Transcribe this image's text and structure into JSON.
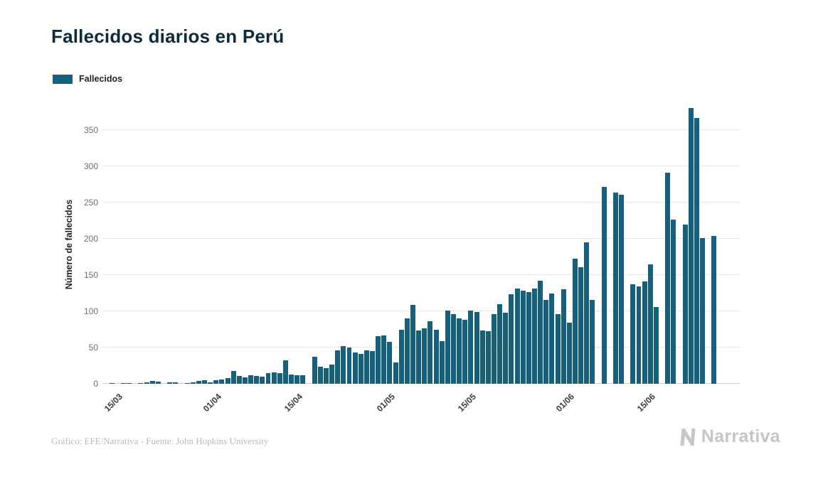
{
  "page": {
    "title": "Fallecidos diarios en Perú",
    "footer_credit": "Gráfico: EFE/Narrativa - Fuente: John Hopkins University",
    "brand": "Narrativa"
  },
  "chart_data": {
    "type": "bar",
    "title": "Fallecidos diarios en Perú",
    "legend": "Fallecidos",
    "xlabel": "",
    "ylabel": "Número de fallecidos",
    "ylim": [
      0,
      380
    ],
    "yticks": [
      0,
      50,
      100,
      150,
      200,
      250,
      300,
      350
    ],
    "grid": true,
    "legend_position": "top-left",
    "bar_color": "#15607d",
    "background_color": "#ffffff",
    "categories": [
      "13/03",
      "14/03",
      "15/03",
      "16/03",
      "17/03",
      "18/03",
      "19/03",
      "20/03",
      "21/03",
      "22/03",
      "23/03",
      "24/03",
      "25/03",
      "26/03",
      "27/03",
      "28/03",
      "29/03",
      "30/03",
      "31/03",
      "01/04",
      "02/04",
      "03/04",
      "04/04",
      "05/04",
      "06/04",
      "07/04",
      "08/04",
      "09/04",
      "10/04",
      "11/04",
      "12/04",
      "13/04",
      "14/04",
      "15/04",
      "16/04",
      "17/04",
      "18/04",
      "19/04",
      "20/04",
      "21/04",
      "22/04",
      "23/04",
      "24/04",
      "25/04",
      "26/04",
      "27/04",
      "28/04",
      "29/04",
      "30/04",
      "01/05",
      "02/05",
      "03/05",
      "04/05",
      "05/05",
      "06/05",
      "07/05",
      "08/05",
      "09/05",
      "10/05",
      "11/05",
      "12/05",
      "13/05",
      "14/05",
      "15/05",
      "16/05",
      "17/05",
      "18/05",
      "19/05",
      "20/05",
      "21/05",
      "22/05",
      "23/05",
      "24/05",
      "25/05",
      "26/05",
      "27/05",
      "28/05",
      "29/05",
      "30/05",
      "31/05",
      "01/06",
      "02/06",
      "03/06",
      "04/06",
      "05/06",
      "06/06",
      "07/06",
      "08/06",
      "09/06",
      "10/06",
      "11/06",
      "12/06",
      "13/06",
      "14/06",
      "15/06",
      "16/06",
      "17/06",
      "18/06",
      "19/06",
      "20/06",
      "21/06",
      "22/06",
      "23/06",
      "24/06",
      "25/06",
      "26/06",
      "27/06",
      "28/06",
      "29/06",
      "30/06"
    ],
    "values": [
      0,
      1,
      0,
      1,
      1,
      0,
      1,
      2,
      4,
      3,
      0,
      2,
      2,
      0,
      1,
      2,
      4,
      5,
      2,
      5,
      6,
      8,
      18,
      11,
      9,
      12,
      11,
      10,
      15,
      16,
      15,
      32,
      13,
      12,
      12,
      0,
      37,
      24,
      22,
      26,
      46,
      52,
      50,
      43,
      41,
      46,
      45,
      66,
      67,
      58,
      29,
      75,
      90,
      109,
      74,
      76,
      86,
      75,
      59,
      101,
      96,
      90,
      88,
      101,
      99,
      74,
      73,
      96,
      110,
      98,
      124,
      131,
      128,
      126,
      131,
      142,
      116,
      125,
      96,
      130,
      84,
      173,
      161,
      195,
      116,
      0,
      272,
      0,
      264,
      261,
      0,
      137,
      134,
      141,
      165,
      106,
      0,
      291,
      226,
      0,
      220,
      380,
      367,
      201,
      0,
      204,
      0,
      0,
      0,
      0
    ],
    "xticks": [
      {
        "label": "15/03",
        "index": 2
      },
      {
        "label": "01/04",
        "index": 19
      },
      {
        "label": "15/04",
        "index": 33
      },
      {
        "label": "01/05",
        "index": 49
      },
      {
        "label": "15/05",
        "index": 63
      },
      {
        "label": "01/06",
        "index": 80
      },
      {
        "label": "15/06",
        "index": 94
      }
    ]
  }
}
